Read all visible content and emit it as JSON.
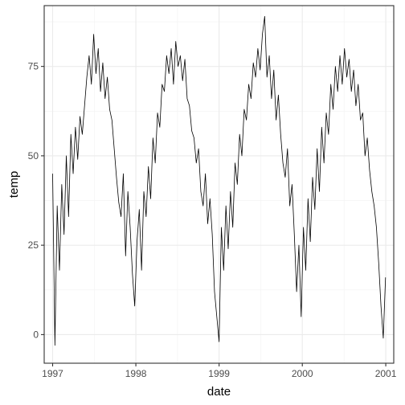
{
  "chart_data": {
    "type": "line",
    "xlabel": "date",
    "ylabel": "temp",
    "xlim": [
      "1996-11-25",
      "2001-02-05"
    ],
    "ylim": [
      -8,
      92
    ],
    "x_ticks": [
      "1997-01-01",
      "1998-01-01",
      "1999-01-01",
      "2000-01-01",
      "2001-01-01"
    ],
    "x_tick_labels": [
      "1997",
      "1998",
      "1999",
      "2000",
      "2001"
    ],
    "y_ticks": [
      0,
      25,
      50,
      75
    ],
    "y_tick_labels": [
      "0",
      "25",
      "50",
      "75"
    ],
    "grid": true,
    "legend": "none",
    "line_color": "#000000",
    "series": [
      {
        "x": [
          "1997-01-01",
          "1997-01-11",
          "1997-01-21",
          "1997-01-31",
          "1997-02-10",
          "1997-02-20",
          "1997-03-02",
          "1997-03-12",
          "1997-03-22",
          "1997-04-01",
          "1997-04-11",
          "1997-04-21",
          "1997-05-01",
          "1997-05-11",
          "1997-05-21",
          "1997-05-31",
          "1997-06-10",
          "1997-06-20",
          "1997-06-30",
          "1997-07-10",
          "1997-07-20",
          "1997-07-30",
          "1997-08-09",
          "1997-08-19",
          "1997-08-29",
          "1997-09-08",
          "1997-09-18",
          "1997-09-28",
          "1997-10-08",
          "1997-10-18",
          "1997-10-28",
          "1997-11-07",
          "1997-11-17",
          "1997-11-27",
          "1997-12-07",
          "1997-12-17",
          "1997-12-27",
          "1998-01-06",
          "1998-01-16",
          "1998-01-26",
          "1998-02-05",
          "1998-02-15",
          "1998-02-25",
          "1998-03-07",
          "1998-03-17",
          "1998-03-27",
          "1998-04-06",
          "1998-04-16",
          "1998-04-26",
          "1998-05-06",
          "1998-05-16",
          "1998-05-26",
          "1998-06-05",
          "1998-06-15",
          "1998-06-25",
          "1998-07-05",
          "1998-07-15",
          "1998-07-25",
          "1998-08-04",
          "1998-08-14",
          "1998-08-24",
          "1998-09-03",
          "1998-09-13",
          "1998-09-23",
          "1998-10-03",
          "1998-10-13",
          "1998-10-23",
          "1998-11-02",
          "1998-11-12",
          "1998-11-22",
          "1998-12-02",
          "1998-12-12",
          "1998-12-22",
          "1999-01-01",
          "1999-01-11",
          "1999-01-21",
          "1999-01-31",
          "1999-02-10",
          "1999-02-20",
          "1999-03-02",
          "1999-03-12",
          "1999-03-22",
          "1999-04-01",
          "1999-04-11",
          "1999-04-21",
          "1999-05-01",
          "1999-05-11",
          "1999-05-21",
          "1999-05-31",
          "1999-06-10",
          "1999-06-20",
          "1999-06-30",
          "1999-07-10",
          "1999-07-20",
          "1999-07-30",
          "1999-08-09",
          "1999-08-19",
          "1999-08-29",
          "1999-09-08",
          "1999-09-18",
          "1999-09-28",
          "1999-10-08",
          "1999-10-18",
          "1999-10-28",
          "1999-11-07",
          "1999-11-17",
          "1999-11-27",
          "1999-12-07",
          "1999-12-17",
          "1999-12-27",
          "2000-01-06",
          "2000-01-16",
          "2000-01-26",
          "2000-02-05",
          "2000-02-15",
          "2000-02-25",
          "2000-03-06",
          "2000-03-16",
          "2000-03-26",
          "2000-04-05",
          "2000-04-15",
          "2000-04-25",
          "2000-05-05",
          "2000-05-15",
          "2000-05-25",
          "2000-06-04",
          "2000-06-14",
          "2000-06-24",
          "2000-07-04",
          "2000-07-14",
          "2000-07-24",
          "2000-08-03",
          "2000-08-13",
          "2000-08-23",
          "2000-09-02",
          "2000-09-12",
          "2000-09-22",
          "2000-10-02",
          "2000-10-12",
          "2000-10-22",
          "2000-11-01",
          "2000-11-11",
          "2000-11-21",
          "2000-12-01",
          "2000-12-11",
          "2000-12-21",
          "2000-12-31"
        ],
        "values": [
          45,
          -3,
          36,
          18,
          42,
          28,
          50,
          33,
          56,
          45,
          58,
          49,
          61,
          56,
          64,
          72,
          78,
          70,
          84,
          73,
          80,
          68,
          76,
          66,
          72,
          63,
          60,
          52,
          44,
          37,
          33,
          45,
          22,
          40,
          30,
          17,
          8,
          26,
          35,
          18,
          40,
          33,
          47,
          38,
          55,
          48,
          62,
          58,
          70,
          68,
          78,
          73,
          80,
          70,
          82,
          75,
          78,
          71,
          77,
          66,
          64,
          57,
          55,
          48,
          52,
          40,
          36,
          45,
          31,
          38,
          28,
          12,
          5,
          -2,
          30,
          18,
          36,
          24,
          40,
          30,
          48,
          42,
          56,
          50,
          63,
          60,
          70,
          66,
          76,
          72,
          80,
          74,
          84,
          89,
          72,
          78,
          66,
          74,
          60,
          67,
          56,
          48,
          44,
          52,
          36,
          42,
          28,
          12,
          25,
          5,
          30,
          18,
          38,
          26,
          44,
          35,
          52,
          40,
          58,
          48,
          62,
          56,
          70,
          63,
          75,
          68,
          78,
          70,
          80,
          72,
          77,
          68,
          74,
          64,
          70,
          60,
          62,
          50,
          55,
          46,
          40,
          36,
          30,
          20,
          8,
          -1,
          16
        ]
      }
    ]
  }
}
